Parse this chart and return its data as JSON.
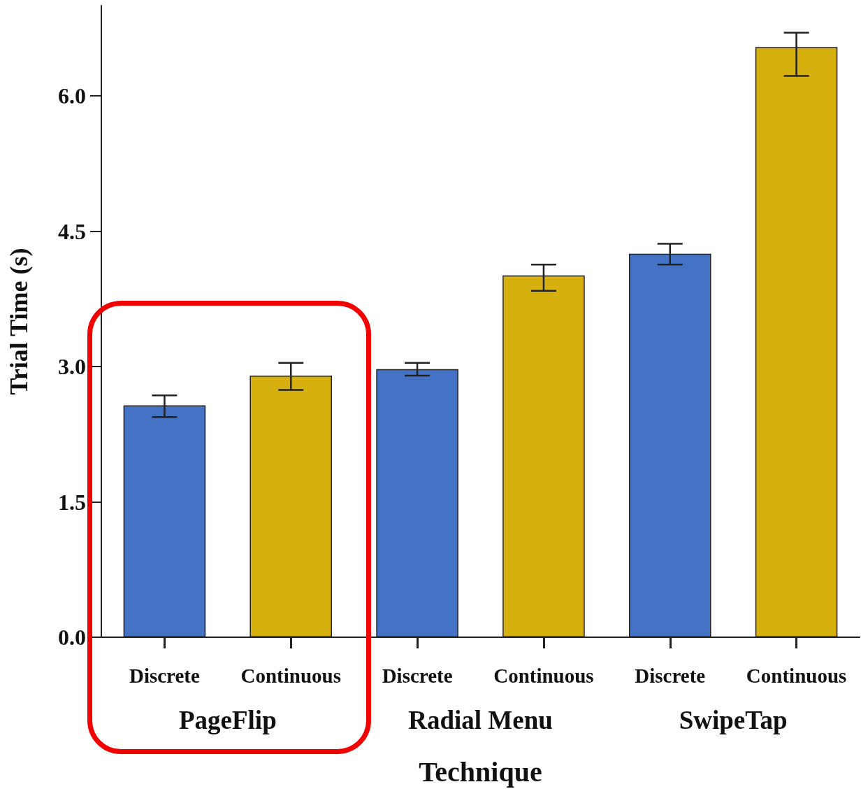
{
  "chart_data": {
    "type": "bar",
    "xlabel": "Technique",
    "ylabel": "Trial Time (s)",
    "categories": [
      "Discrete",
      "Continuous",
      "Discrete",
      "Continuous",
      "Discrete",
      "Continuous"
    ],
    "values": [
      2.57,
      2.9,
      2.97,
      4.01,
      4.25,
      6.54
    ],
    "colors": [
      "#4472c4",
      "#d6b00e",
      "#4472c4",
      "#d6b00e",
      "#4472c4",
      "#d6b00e"
    ],
    "errors": [
      [
        2.44,
        2.68
      ],
      [
        2.74,
        3.04
      ],
      [
        2.9,
        3.04
      ],
      [
        3.84,
        4.13
      ],
      [
        4.13,
        4.36
      ],
      [
        6.22,
        6.7
      ]
    ],
    "annotations": [
      "PageFlip",
      "Radial Menu",
      "SwipeTap"
    ],
    "ylim": [
      0,
      7
    ],
    "yticks": [
      {
        "value": 0,
        "label": "0.0"
      },
      {
        "value": 1.5,
        "label": "1.5"
      },
      {
        "value": 3,
        "label": "3.0"
      },
      {
        "value": 4.5,
        "label": "4.5"
      },
      {
        "value": 6,
        "label": "6.0"
      }
    ],
    "grid": false
  }
}
